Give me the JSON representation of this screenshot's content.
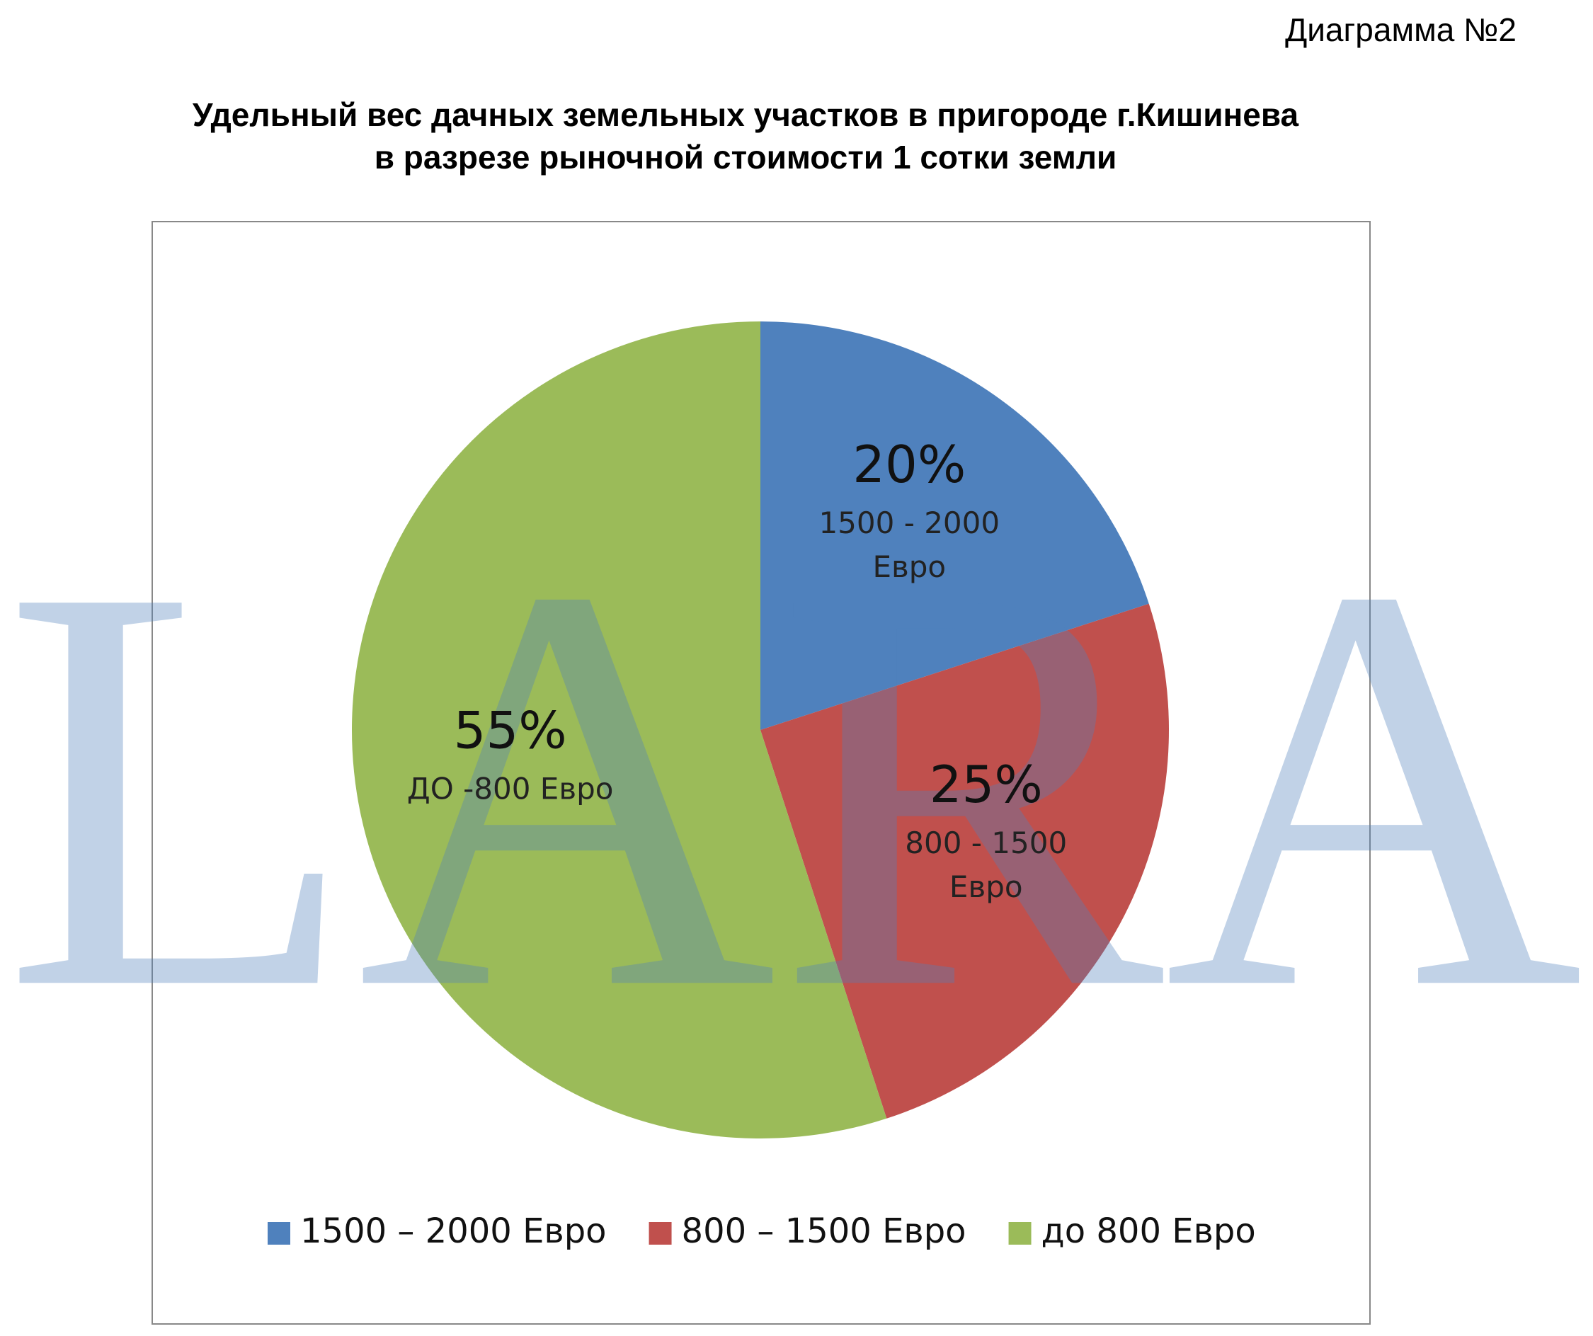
{
  "chart_data": {
    "type": "pie",
    "corner_label": "Диаграмма №2",
    "title": [
      "Удельный вес дачных земельных участков в пригороде г.Кишинева",
      "в разрезе рыночной стоимости 1 сотки земли"
    ],
    "watermark": "LARA",
    "series": [
      {
        "name": "1500 – 2000 Евро",
        "color": "#4f81bd",
        "values": [
          20
        ],
        "value_labels": [
          "20%"
        ],
        "slice_label": [
          "1500 - 2000",
          "Евро"
        ]
      },
      {
        "name": "800 – 1500 Евро",
        "color": "#c0504d",
        "values": [
          25
        ],
        "value_labels": [
          "25%"
        ],
        "slice_label": [
          "800 - 1500",
          "Евро"
        ]
      },
      {
        "name": "до 800 Евро",
        "color": "#9bbb59",
        "values": [
          55
        ],
        "value_labels": [
          "55%"
        ],
        "slice_label": [
          "ДО -800 Евро"
        ]
      }
    ],
    "legend": "bottom"
  }
}
